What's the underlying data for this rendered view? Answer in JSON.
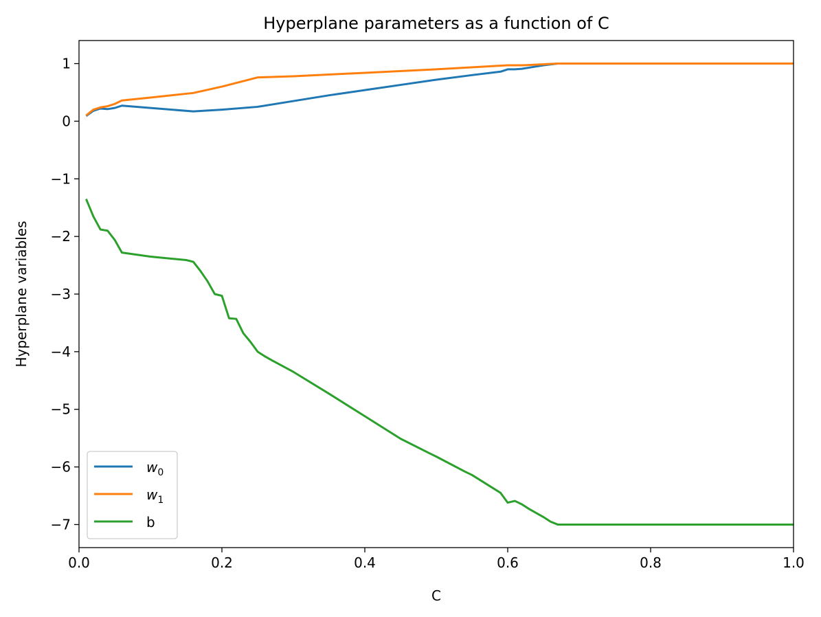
{
  "chart_data": {
    "type": "line",
    "title": "Hyperplane parameters as a function of C",
    "xlabel": "C",
    "ylabel": "Hyperplane variables",
    "xlim": [
      0.0,
      1.0
    ],
    "ylim": [
      -7.4,
      1.4
    ],
    "xticks": [
      "0.0",
      "0.2",
      "0.4",
      "0.6",
      "0.8",
      "1.0"
    ],
    "xtick_values": [
      0.0,
      0.2,
      0.4,
      0.6,
      0.8,
      1.0
    ],
    "yticks": [
      "1",
      "0",
      "−1",
      "−2",
      "−3",
      "−4",
      "−5",
      "−6",
      "−7"
    ],
    "ytick_values": [
      1,
      0,
      -1,
      -2,
      -3,
      -4,
      -5,
      -6,
      -7
    ],
    "grid": false,
    "legend_position": "lower-left",
    "series": [
      {
        "name": "w",
        "name_sub": "0",
        "color": "#1f77b4",
        "x": [
          0.01,
          0.02,
          0.03,
          0.04,
          0.05,
          0.06,
          0.1,
          0.16,
          0.2,
          0.25,
          0.3,
          0.35,
          0.4,
          0.45,
          0.5,
          0.55,
          0.59,
          0.6,
          0.61,
          0.62,
          0.65,
          0.67,
          0.7,
          0.8,
          0.9,
          1.0
        ],
        "values": [
          0.09,
          0.18,
          0.22,
          0.21,
          0.23,
          0.27,
          0.23,
          0.17,
          0.2,
          0.25,
          0.35,
          0.45,
          0.54,
          0.63,
          0.72,
          0.8,
          0.86,
          0.9,
          0.9,
          0.91,
          0.97,
          1.0,
          1.0,
          1.0,
          1.0,
          1.0
        ]
      },
      {
        "name": "w",
        "name_sub": "1",
        "color": "#ff7f0e",
        "x": [
          0.01,
          0.02,
          0.03,
          0.04,
          0.05,
          0.06,
          0.1,
          0.16,
          0.2,
          0.25,
          0.3,
          0.4,
          0.5,
          0.6,
          0.61,
          0.62,
          0.67,
          0.7,
          0.8,
          0.9,
          1.0
        ],
        "values": [
          0.1,
          0.2,
          0.24,
          0.26,
          0.3,
          0.36,
          0.41,
          0.49,
          0.6,
          0.76,
          0.78,
          0.84,
          0.9,
          0.97,
          0.97,
          0.97,
          1.0,
          1.0,
          1.0,
          1.0,
          1.0
        ]
      },
      {
        "name": "b",
        "name_sub": "",
        "color": "#2ca02c",
        "x": [
          0.01,
          0.02,
          0.03,
          0.04,
          0.05,
          0.06,
          0.1,
          0.15,
          0.16,
          0.17,
          0.18,
          0.19,
          0.2,
          0.21,
          0.22,
          0.23,
          0.24,
          0.25,
          0.26,
          0.27,
          0.3,
          0.35,
          0.4,
          0.45,
          0.49,
          0.5,
          0.54,
          0.55,
          0.59,
          0.6,
          0.61,
          0.62,
          0.63,
          0.64,
          0.65,
          0.66,
          0.67,
          0.7,
          0.8,
          0.9,
          1.0
        ],
        "values": [
          -1.35,
          -1.65,
          -1.88,
          -1.9,
          -2.06,
          -2.28,
          -2.35,
          -2.41,
          -2.44,
          -2.6,
          -2.78,
          -3.0,
          -3.03,
          -3.42,
          -3.43,
          -3.68,
          -3.83,
          -4.0,
          -4.08,
          -4.15,
          -4.35,
          -4.73,
          -5.12,
          -5.51,
          -5.76,
          -5.82,
          -6.08,
          -6.14,
          -6.45,
          -6.62,
          -6.59,
          -6.65,
          -6.73,
          -6.8,
          -6.87,
          -6.95,
          -7.0,
          -7.0,
          -7.0,
          -7.0,
          -7.0
        ]
      }
    ]
  }
}
